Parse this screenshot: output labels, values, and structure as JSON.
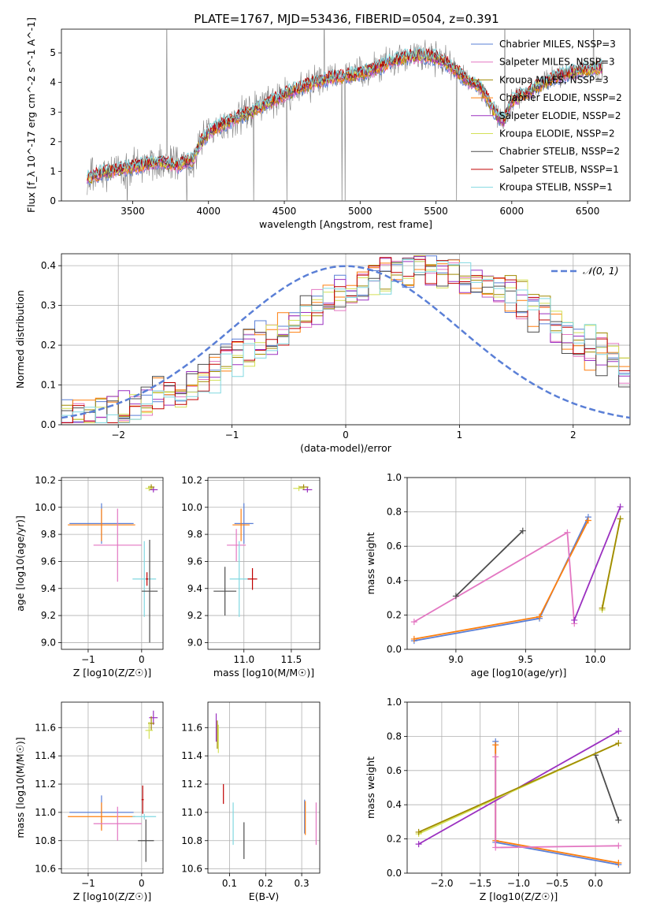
{
  "figure": {
    "title": "PLATE=1767, MJD=53436, FIBERID=0504, z=0.391"
  },
  "chart_data": [
    {
      "id": "spectrum",
      "type": "line",
      "xlabel": "wavelength [Angstrom, rest frame]",
      "ylabel": "Flux [f_λ 10^-17 erg cm^-2 s^-1 A^-1]",
      "xlim": [
        3030,
        6780
      ],
      "ylim": [
        0,
        5.8
      ],
      "xticks": [
        3500,
        4000,
        4500,
        5000,
        5500,
        6000,
        6500
      ],
      "yticks": [
        0,
        1,
        2,
        3,
        4,
        5
      ],
      "legend_position": "top-right",
      "series": [
        {
          "name": "Chabrier MILES, NSSP=3",
          "color": "#5a7fd6"
        },
        {
          "name": "Salpeter MILES, NSSP=3",
          "color": "#e377c2"
        },
        {
          "name": "Kroupa MILES, NSSP=3",
          "color": "#a08a00"
        },
        {
          "name": "Chabrier ELODIE, NSSP=2",
          "color": "#ff7f0e"
        },
        {
          "name": "Salpeter ELODIE, NSSP=2",
          "color": "#9b30c0"
        },
        {
          "name": "Kroupa ELODIE, NSSP=2",
          "color": "#d4e157"
        },
        {
          "name": "Chabrier STELIB, NSSP=2",
          "color": "#4d4d4d"
        },
        {
          "name": "Salpeter STELIB, NSSP=1",
          "color": "#c00000"
        },
        {
          "name": "Kroupa STELIB, NSSP=1",
          "color": "#80d8e0"
        }
      ],
      "observed_color": "#808080",
      "continuum_knots": {
        "x": [
          3200,
          3300,
          3400,
          3500,
          3600,
          3700,
          3800,
          3900,
          3950,
          4000,
          4100,
          4200,
          4300,
          4400,
          4500,
          4600,
          4700,
          4800,
          4900,
          5000,
          5100,
          5200,
          5300,
          5400,
          5500,
          5600,
          5700,
          5800,
          5900,
          5950,
          6000,
          6100,
          6200,
          6300,
          6400,
          6500,
          6600
        ],
        "y": [
          0.75,
          0.95,
          1.05,
          1.15,
          1.25,
          1.3,
          1.2,
          1.4,
          2.0,
          2.3,
          2.6,
          2.85,
          3.05,
          3.3,
          3.6,
          3.8,
          4.0,
          4.15,
          4.2,
          4.3,
          4.45,
          4.7,
          4.85,
          4.9,
          4.85,
          4.55,
          4.1,
          3.8,
          2.9,
          2.7,
          3.4,
          3.65,
          3.95,
          4.2,
          4.35,
          4.45,
          4.5
        ]
      }
    },
    {
      "id": "residuals",
      "type": "line",
      "xlabel": "(data-model)/error",
      "ylabel": "Normed distribution",
      "xlim": [
        -2.5,
        2.5
      ],
      "ylim": [
        0,
        0.43
      ],
      "xticks": [
        -2,
        -1,
        0,
        1,
        2
      ],
      "yticks": [
        0.0,
        0.1,
        0.2,
        0.3,
        0.4
      ],
      "gaussian_label": "𝒩(0, 1)",
      "gaussian_color": "#5a7fd6",
      "legend_position": "top-right",
      "bin_width": 0.1
    },
    {
      "id": "age-vs-Z",
      "type": "scatter",
      "xlabel": "Z [log10(Z/Z☉)]",
      "ylabel": "age  [log10(age/yr)]",
      "xlim": [
        -1.5,
        0.4
      ],
      "ylim": [
        8.95,
        10.22
      ],
      "xticks": [
        -1,
        0
      ],
      "yticks": [
        9.0,
        9.2,
        9.4,
        9.6,
        9.8,
        10.0,
        10.2
      ],
      "points": [
        {
          "color": "#5a7fd6",
          "x": -0.75,
          "y": 9.88,
          "xerr": 0.6,
          "yerr": 0.15
        },
        {
          "color": "#ff7f0e",
          "x": -0.75,
          "y": 9.87,
          "xerr": 0.63,
          "yerr": 0.12
        },
        {
          "color": "#e377c2",
          "x": -0.45,
          "y": 9.72,
          "xerr": 0.45,
          "yerr": 0.27
        },
        {
          "color": "#9b30c0",
          "x": 0.22,
          "y": 10.13,
          "xerr": 0.08,
          "yerr": 0.02
        },
        {
          "color": "#a08a00",
          "x": 0.18,
          "y": 10.15,
          "xerr": 0.06,
          "yerr": 0.02
        },
        {
          "color": "#d4e157",
          "x": 0.14,
          "y": 10.14,
          "xerr": 0.07,
          "yerr": 0.02
        },
        {
          "color": "#80d8e0",
          "x": 0.05,
          "y": 9.47,
          "xerr": 0.22,
          "yerr": 0.28
        },
        {
          "color": "#c00000",
          "x": 0.1,
          "y": 9.47,
          "xerr": 0.02,
          "yerr": 0.05
        },
        {
          "color": "#4d4d4d",
          "x": 0.15,
          "y": 9.38,
          "xerr": 0.15,
          "yerr": 0.38
        }
      ]
    },
    {
      "id": "age-vs-mass",
      "type": "scatter",
      "xlabel": "mass [log10(M/M☉)]",
      "ylabel": "",
      "xlim": [
        10.62,
        11.8
      ],
      "ylim": [
        8.95,
        10.22
      ],
      "xticks": [
        11.0,
        11.5
      ],
      "yticks": [
        9.0,
        9.2,
        9.4,
        9.6,
        9.8,
        10.0,
        10.2
      ],
      "points": [
        {
          "color": "#5a7fd6",
          "x": 11.0,
          "y": 9.88,
          "xerr": 0.1,
          "yerr": 0.15
        },
        {
          "color": "#ff7f0e",
          "x": 10.97,
          "y": 9.87,
          "xerr": 0.09,
          "yerr": 0.12
        },
        {
          "color": "#e377c2",
          "x": 10.92,
          "y": 9.72,
          "xerr": 0.1,
          "yerr": 0.12
        },
        {
          "color": "#9b30c0",
          "x": 11.67,
          "y": 10.13,
          "xerr": 0.05,
          "yerr": 0.02
        },
        {
          "color": "#a08a00",
          "x": 11.63,
          "y": 10.15,
          "xerr": 0.05,
          "yerr": 0.02
        },
        {
          "color": "#d4e157",
          "x": 11.58,
          "y": 10.14,
          "xerr": 0.06,
          "yerr": 0.02
        },
        {
          "color": "#80d8e0",
          "x": 10.95,
          "y": 9.47,
          "xerr": 0.1,
          "yerr": 0.28
        },
        {
          "color": "#c00000",
          "x": 11.09,
          "y": 9.47,
          "xerr": 0.05,
          "yerr": 0.08
        },
        {
          "color": "#4d4d4d",
          "x": 10.8,
          "y": 9.38,
          "xerr": 0.12,
          "yerr": 0.18
        }
      ]
    },
    {
      "id": "weight-vs-age",
      "type": "line",
      "xlabel": "age  [log10(age/yr)]",
      "ylabel": "mass weight",
      "xlim": [
        8.65,
        10.25
      ],
      "ylim": [
        0,
        1.0
      ],
      "xticks": [
        9.0,
        9.5,
        10.0
      ],
      "yticks": [
        0.0,
        0.2,
        0.4,
        0.6,
        0.8,
        1.0
      ],
      "series": [
        {
          "color": "#5a7fd6",
          "x": [
            8.7,
            9.6,
            9.95
          ],
          "y": [
            0.05,
            0.18,
            0.77
          ]
        },
        {
          "color": "#ff7f0e",
          "x": [
            8.7,
            9.6,
            9.95
          ],
          "y": [
            0.06,
            0.19,
            0.75
          ]
        },
        {
          "color": "#e377c2",
          "x": [
            8.7,
            9.8,
            9.85
          ],
          "y": [
            0.16,
            0.68,
            0.15
          ]
        },
        {
          "color": "#4d4d4d",
          "x": [
            9.0,
            9.48
          ],
          "y": [
            0.31,
            0.69
          ]
        },
        {
          "color": "#9b30c0",
          "x": [
            9.85,
            10.18
          ],
          "y": [
            0.17,
            0.83
          ]
        },
        {
          "color": "#d4e157",
          "x": [
            10.05,
            10.18
          ],
          "y": [
            0.23,
            0.76
          ]
        },
        {
          "color": "#a08a00",
          "x": [
            10.05,
            10.18
          ],
          "y": [
            0.24,
            0.76
          ]
        }
      ]
    },
    {
      "id": "mass-vs-Z",
      "type": "scatter",
      "xlabel": "Z [log10(Z/Z☉)]",
      "ylabel": "mass [log10(M/M☉)]",
      "xlim": [
        -1.5,
        0.4
      ],
      "ylim": [
        10.57,
        11.78
      ],
      "xticks": [
        -1,
        0
      ],
      "yticks": [
        10.6,
        10.8,
        11.0,
        11.2,
        11.4,
        11.6
      ],
      "points": [
        {
          "color": "#5a7fd6",
          "x": -0.75,
          "y": 11.0,
          "xerr": 0.6,
          "yerr": 0.12
        },
        {
          "color": "#ff7f0e",
          "x": -0.75,
          "y": 10.97,
          "xerr": 0.63,
          "yerr": 0.1
        },
        {
          "color": "#e377c2",
          "x": -0.45,
          "y": 10.92,
          "xerr": 0.45,
          "yerr": 0.12
        },
        {
          "color": "#9b30c0",
          "x": 0.22,
          "y": 11.67,
          "xerr": 0.08,
          "yerr": 0.05
        },
        {
          "color": "#a08a00",
          "x": 0.18,
          "y": 11.63,
          "xerr": 0.06,
          "yerr": 0.05
        },
        {
          "color": "#d4e157",
          "x": 0.14,
          "y": 11.58,
          "xerr": 0.07,
          "yerr": 0.06
        },
        {
          "color": "#80d8e0",
          "x": 0.05,
          "y": 10.97,
          "xerr": 0.22,
          "yerr": 0.02
        },
        {
          "color": "#c00000",
          "x": 0.02,
          "y": 11.09,
          "xerr": 0.02,
          "yerr": 0.1
        },
        {
          "color": "#4d4d4d",
          "x": 0.08,
          "y": 10.8,
          "xerr": 0.15,
          "yerr": 0.15
        }
      ]
    },
    {
      "id": "mass-vs-EBV",
      "type": "scatter",
      "xlabel": "E(B-V)",
      "ylabel": "",
      "xlim": [
        0.04,
        0.35
      ],
      "ylim": [
        10.57,
        11.78
      ],
      "xticks": [
        0.1,
        0.2,
        0.3
      ],
      "yticks": [
        10.6,
        10.8,
        11.0,
        11.2,
        11.4,
        11.6
      ],
      "points": [
        {
          "color": "#9b30c0",
          "x": 0.063,
          "y": 11.6,
          "yerr": 0.1
        },
        {
          "color": "#a08a00",
          "x": 0.066,
          "y": 11.55,
          "yerr": 0.1
        },
        {
          "color": "#d4e157",
          "x": 0.069,
          "y": 11.52,
          "yerr": 0.1
        },
        {
          "color": "#c00000",
          "x": 0.083,
          "y": 11.13,
          "yerr": 0.07
        },
        {
          "color": "#80d8e0",
          "x": 0.11,
          "y": 10.92,
          "yerr": 0.15
        },
        {
          "color": "#4d4d4d",
          "x": 0.14,
          "y": 10.8,
          "yerr": 0.13
        },
        {
          "color": "#5a7fd6",
          "x": 0.308,
          "y": 10.97,
          "yerr": 0.12
        },
        {
          "color": "#ff7f0e",
          "x": 0.31,
          "y": 10.96,
          "yerr": 0.12
        },
        {
          "color": "#e377c2",
          "x": 0.34,
          "y": 10.92,
          "yerr": 0.15
        }
      ]
    },
    {
      "id": "weight-vs-Z",
      "type": "line",
      "xlabel": "Z [log10(Z/Z☉)]",
      "ylabel": "mass weight",
      "xlim": [
        -2.45,
        0.45
      ],
      "ylim": [
        0,
        1.0
      ],
      "xticks": [
        -2.0,
        -1.5,
        -1.0,
        -0.5,
        0.0
      ],
      "yticks": [
        0.0,
        0.2,
        0.4,
        0.6,
        0.8,
        1.0
      ],
      "series": [
        {
          "color": "#5a7fd6",
          "x": [
            -1.3,
            -1.3,
            0.3
          ],
          "y": [
            0.77,
            0.18,
            0.05
          ]
        },
        {
          "color": "#ff7f0e",
          "x": [
            -1.3,
            -1.3,
            0.3
          ],
          "y": [
            0.75,
            0.19,
            0.06
          ]
        },
        {
          "color": "#e377c2",
          "x": [
            -1.3,
            -1.3,
            0.3
          ],
          "y": [
            0.68,
            0.15,
            0.16
          ]
        },
        {
          "color": "#4d4d4d",
          "x": [
            0.0,
            0.3
          ],
          "y": [
            0.69,
            0.31
          ]
        },
        {
          "color": "#9b30c0",
          "x": [
            -2.3,
            0.3
          ],
          "y": [
            0.17,
            0.83
          ]
        },
        {
          "color": "#d4e157",
          "x": [
            -2.3,
            0.3
          ],
          "y": [
            0.23,
            0.76
          ]
        },
        {
          "color": "#a08a00",
          "x": [
            -2.3,
            0.3
          ],
          "y": [
            0.24,
            0.76
          ]
        }
      ]
    }
  ]
}
